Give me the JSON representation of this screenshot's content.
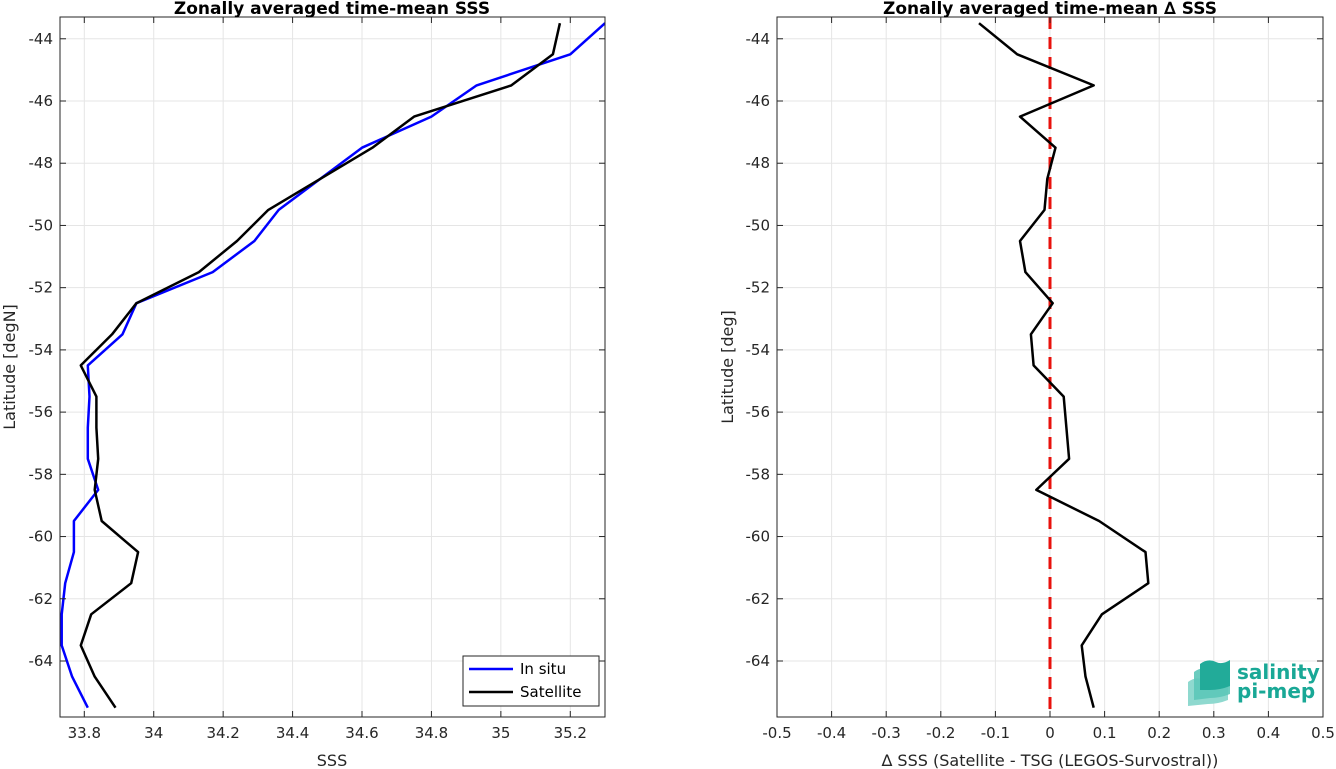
{
  "chart_data": [
    {
      "type": "line",
      "title": "Zonally averaged time-mean SSS",
      "xlabel": "SSS",
      "ylabel": "Latitude [degN]",
      "xlim": [
        33.73,
        35.3
      ],
      "ylim": [
        -65.8,
        -43.3
      ],
      "xticks": [
        33.8,
        34,
        34.2,
        34.4,
        34.6,
        34.8,
        35,
        35.2
      ],
      "xtick_labels": [
        "33.8",
        "34",
        "34.2",
        "34.4",
        "34.6",
        "34.8",
        "35",
        "35.2"
      ],
      "yticks": [
        -64,
        -62,
        -60,
        -58,
        -56,
        -54,
        -52,
        -50,
        -48,
        -46,
        -44
      ],
      "ytick_labels": [
        "-64",
        "-62",
        "-60",
        "-58",
        "-56",
        "-54",
        "-52",
        "-50",
        "-48",
        "-46",
        "-44"
      ],
      "grid": true,
      "legend_position": "bottom-right",
      "series": [
        {
          "name": "In situ",
          "color": "#0000ff",
          "points": [
            [
              35.3,
              -43.5
            ],
            [
              35.2,
              -44.5
            ],
            [
              34.93,
              -45.5
            ],
            [
              34.8,
              -46.5
            ],
            [
              34.6,
              -47.5
            ],
            [
              34.48,
              -48.5
            ],
            [
              34.36,
              -49.5
            ],
            [
              34.29,
              -50.5
            ],
            [
              34.17,
              -51.5
            ],
            [
              33.95,
              -52.5
            ],
            [
              33.91,
              -53.5
            ],
            [
              33.81,
              -54.5
            ],
            [
              33.815,
              -55.5
            ],
            [
              33.81,
              -56.5
            ],
            [
              33.81,
              -57.5
            ],
            [
              33.84,
              -58.5
            ],
            [
              33.77,
              -59.5
            ],
            [
              33.77,
              -60.5
            ],
            [
              33.745,
              -61.5
            ],
            [
              33.735,
              -62.5
            ],
            [
              33.735,
              -63.5
            ],
            [
              33.765,
              -64.5
            ],
            [
              33.81,
              -65.5
            ]
          ]
        },
        {
          "name": "Satellite",
          "color": "#000000",
          "points": [
            [
              35.17,
              -43.5
            ],
            [
              35.15,
              -44.5
            ],
            [
              35.03,
              -45.5
            ],
            [
              34.75,
              -46.5
            ],
            [
              34.63,
              -47.5
            ],
            [
              34.48,
              -48.5
            ],
            [
              34.33,
              -49.5
            ],
            [
              34.24,
              -50.5
            ],
            [
              34.13,
              -51.5
            ],
            [
              33.95,
              -52.5
            ],
            [
              33.88,
              -53.5
            ],
            [
              33.79,
              -54.5
            ],
            [
              33.835,
              -55.5
            ],
            [
              33.835,
              -56.5
            ],
            [
              33.84,
              -57.5
            ],
            [
              33.83,
              -58.5
            ],
            [
              33.85,
              -59.5
            ],
            [
              33.955,
              -60.5
            ],
            [
              33.935,
              -61.5
            ],
            [
              33.82,
              -62.5
            ],
            [
              33.79,
              -63.5
            ],
            [
              33.83,
              -64.5
            ],
            [
              33.89,
              -65.5
            ]
          ]
        }
      ]
    },
    {
      "type": "line",
      "title": "Zonally averaged time-mean ∆ SSS",
      "xlabel": "∆ SSS (Satellite - TSG (LEGOS-Survostral))",
      "ylabel": "Latitude [deg]",
      "xlim": [
        -0.5,
        0.5
      ],
      "ylim": [
        -65.8,
        -43.3
      ],
      "xticks": [
        -0.5,
        -0.4,
        -0.3,
        -0.2,
        -0.1,
        0,
        0.1,
        0.2,
        0.3,
        0.4,
        0.5
      ],
      "xtick_labels": [
        "-0.5",
        "-0.4",
        "-0.3",
        "-0.2",
        "-0.1",
        "0",
        "0.1",
        "0.2",
        "0.3",
        "0.4",
        "0.5"
      ],
      "yticks": [
        -64,
        -62,
        -60,
        -58,
        -56,
        -54,
        -52,
        -50,
        -48,
        -46,
        -44
      ],
      "ytick_labels": [
        "-64",
        "-62",
        "-60",
        "-58",
        "-56",
        "-54",
        "-52",
        "-50",
        "-48",
        "-46",
        "-44"
      ],
      "grid": true,
      "reference_line": {
        "x": 0,
        "color": "#e8120c",
        "style": "dashed"
      },
      "series": [
        {
          "color": "#000000",
          "points": [
            [
              -0.13,
              -43.5
            ],
            [
              -0.06,
              -44.5
            ],
            [
              0.08,
              -45.5
            ],
            [
              -0.055,
              -46.5
            ],
            [
              0.01,
              -47.5
            ],
            [
              -0.005,
              -48.5
            ],
            [
              -0.01,
              -49.5
            ],
            [
              -0.055,
              -50.5
            ],
            [
              -0.045,
              -51.5
            ],
            [
              0.005,
              -52.5
            ],
            [
              -0.035,
              -53.5
            ],
            [
              -0.03,
              -54.5
            ],
            [
              0.025,
              -55.5
            ],
            [
              0.03,
              -56.5
            ],
            [
              0.035,
              -57.5
            ],
            [
              -0.025,
              -58.5
            ],
            [
              0.09,
              -59.5
            ],
            [
              0.175,
              -60.5
            ],
            [
              0.18,
              -61.5
            ],
            [
              0.095,
              -62.5
            ],
            [
              0.058,
              -63.5
            ],
            [
              0.065,
              -64.5
            ],
            [
              0.08,
              -65.5
            ]
          ]
        }
      ]
    }
  ],
  "logo": {
    "line1": "salinity",
    "line2": "pi-mep",
    "color": "#19a896"
  }
}
